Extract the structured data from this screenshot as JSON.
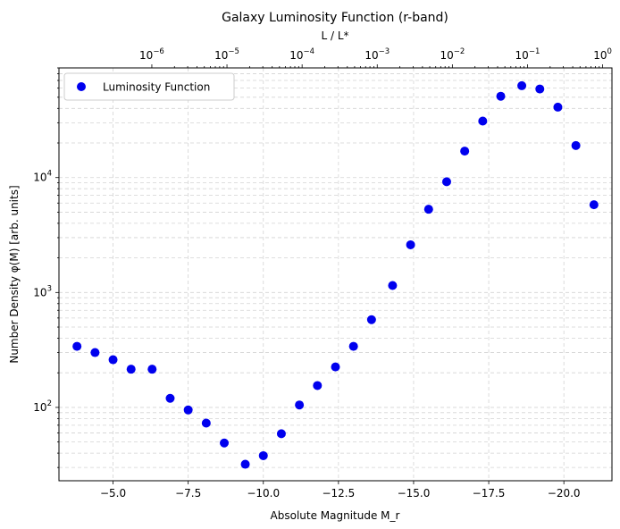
{
  "chart_data": {
    "type": "scatter",
    "title": "Galaxy Luminosity Function (r-band)",
    "xlabel": "Absolute Magnitude M_r",
    "ylabel": "Number Density φ(M) [arb. units]",
    "top_xlabel": "L / L*",
    "x_inverted": true,
    "xlim": [
      -3.2,
      -21.6
    ],
    "ylog": true,
    "ylim": [
      23,
      90000
    ],
    "grid": true,
    "legend_position": "top-left",
    "x_ticks": [
      {
        "value": -5.0,
        "label": "−5.0"
      },
      {
        "value": -7.5,
        "label": "−7.5"
      },
      {
        "value": -10.0,
        "label": "−10.0"
      },
      {
        "value": -12.5,
        "label": "−12.5"
      },
      {
        "value": -15.0,
        "label": "−15.0"
      },
      {
        "value": -17.5,
        "label": "−17.5"
      },
      {
        "value": -20.0,
        "label": "−20.0"
      }
    ],
    "y_ticks": [
      {
        "value": 100,
        "mant": "10",
        "exp": "2"
      },
      {
        "value": 1000,
        "mant": "10",
        "exp": "3"
      },
      {
        "value": 10000,
        "mant": "10",
        "exp": "4"
      }
    ],
    "top_ticks": [
      {
        "m": -6.29,
        "mant": "10",
        "exp": "−6"
      },
      {
        "m": -8.79,
        "mant": "10",
        "exp": "−5"
      },
      {
        "m": -11.29,
        "mant": "10",
        "exp": "−4"
      },
      {
        "m": -13.79,
        "mant": "10",
        "exp": "−3"
      },
      {
        "m": -16.29,
        "mant": "10",
        "exp": "−2"
      },
      {
        "m": -18.79,
        "mant": "10",
        "exp": "−1"
      },
      {
        "m": -21.29,
        "mant": "10",
        "exp": "0"
      }
    ],
    "series": [
      {
        "name": "Luminosity Function",
        "color": "#0000ee",
        "x": [
          -3.8,
          -4.4,
          -5.0,
          -5.6,
          -6.3,
          -6.9,
          -7.5,
          -8.1,
          -8.7,
          -9.4,
          -10.0,
          -10.6,
          -11.2,
          -11.8,
          -12.4,
          -13.0,
          -13.6,
          -14.3,
          -14.9,
          -15.5,
          -16.1,
          -16.7,
          -17.3,
          -17.9,
          -18.6,
          -19.2,
          -19.8,
          -20.4,
          -21.0
        ],
        "y": [
          340,
          300,
          260,
          215,
          215,
          120,
          95,
          73,
          49,
          32,
          38,
          59,
          105,
          155,
          225,
          340,
          580,
          1150,
          2600,
          5300,
          9200,
          17000,
          31000,
          51000,
          63000,
          59000,
          41000,
          19000,
          5800
        ]
      }
    ]
  }
}
